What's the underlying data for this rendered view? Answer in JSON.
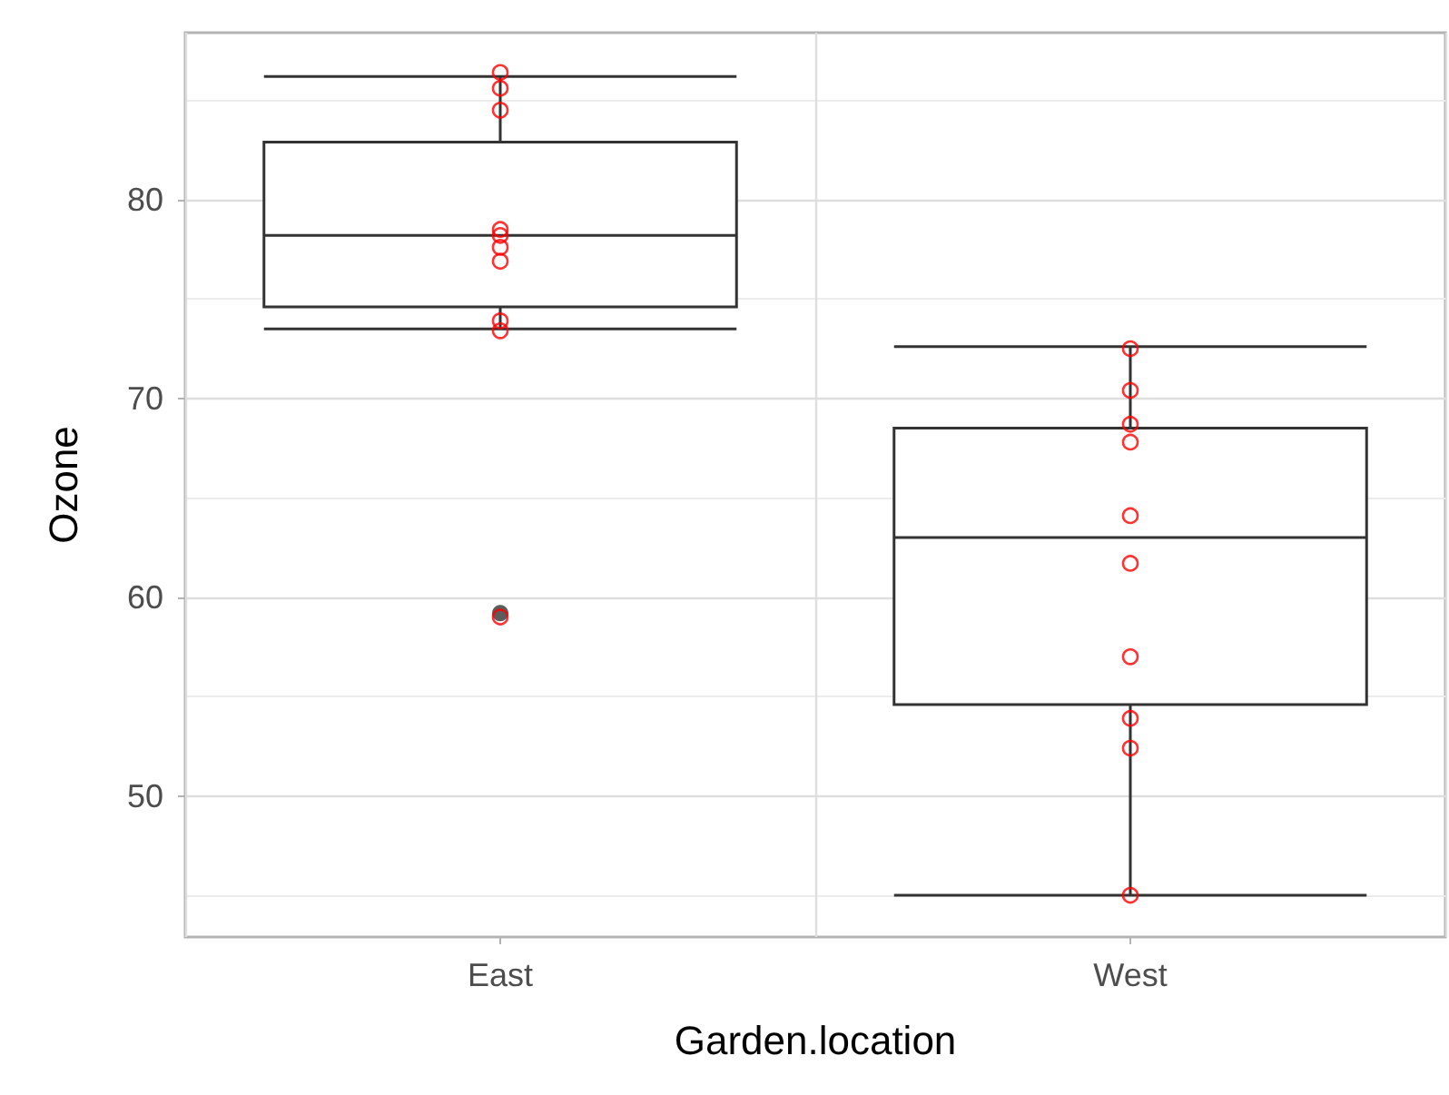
{
  "chart_data": {
    "type": "box",
    "xlabel": "Garden.location",
    "ylabel": "Ozone",
    "categories": [
      "East",
      "West"
    ],
    "boxes": [
      {
        "low": 73.5,
        "q1": 74.6,
        "median": 78.2,
        "q3": 82.9,
        "high": 86.2,
        "outliers": [
          59.2
        ]
      },
      {
        "low": 45,
        "q1": 54.6,
        "median": 63.0,
        "q3": 68.5,
        "high": 72.6
      }
    ],
    "color": "#333333",
    "series": [
      {
        "type": "scatter",
        "color": "#ff0000",
        "marker": "circle",
        "x": [
          "East",
          "East",
          "East",
          "East",
          "East",
          "East",
          "East",
          "East",
          "East",
          "East",
          "West",
          "West",
          "West",
          "West",
          "West",
          "West",
          "West",
          "West",
          "West",
          "West"
        ],
        "values": [
          85.6,
          86.4,
          84.5,
          76.9,
          78.5,
          77.6,
          78.2,
          73.9,
          73.4,
          59.0,
          72.5,
          70.4,
          68.7,
          67.8,
          64.1,
          61.7,
          57.0,
          52.4,
          53.9,
          45.0
        ]
      }
    ],
    "ylim": [
      42.9,
      88.4
    ],
    "yticks": [
      50,
      60,
      70,
      80
    ],
    "grid": true
  }
}
